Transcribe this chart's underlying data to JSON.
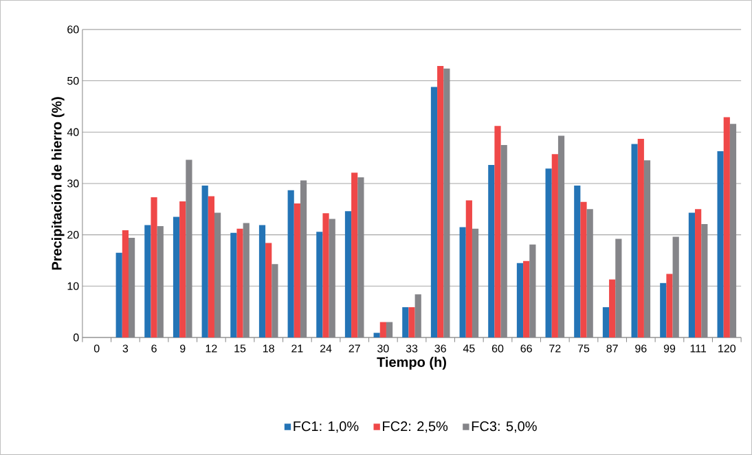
{
  "chart_data": {
    "type": "bar",
    "xlabel": "Tiempo (h)",
    "ylabel": "Precipitación de hierro (%)",
    "categories": [
      "0",
      "3",
      "6",
      "9",
      "12",
      "15",
      "18",
      "21",
      "24",
      "27",
      "30",
      "33",
      "36",
      "45",
      "60",
      "66",
      "72",
      "75",
      "87",
      "96",
      "99",
      "111",
      "120"
    ],
    "series": [
      {
        "name": "FC1: 1,0%",
        "color": "#2474b6",
        "values": [
          null,
          16.5,
          21.9,
          23.5,
          29.6,
          20.4,
          21.9,
          28.7,
          20.6,
          24.6,
          0.9,
          5.9,
          48.8,
          21.5,
          33.6,
          14.5,
          32.9,
          29.6,
          5.9,
          37.7,
          10.6,
          24.3,
          36.3
        ]
      },
      {
        "name": "FC2: 2,5%",
        "color": "#ef4848",
        "values": [
          null,
          20.9,
          27.3,
          26.5,
          27.5,
          21.2,
          18.4,
          26.1,
          24.2,
          32.1,
          3.0,
          5.9,
          52.9,
          26.7,
          41.2,
          14.9,
          35.7,
          26.4,
          11.3,
          38.7,
          12.4,
          25.0,
          42.9
        ]
      },
      {
        "name": "FC3: 5,0%",
        "color": "#858589",
        "values": [
          null,
          19.4,
          21.7,
          34.6,
          24.3,
          22.3,
          14.3,
          30.6,
          23.1,
          31.2,
          3.0,
          8.4,
          52.4,
          21.2,
          37.5,
          18.1,
          39.3,
          25.0,
          19.2,
          34.5,
          19.6,
          22.1,
          41.6
        ]
      }
    ],
    "ylim": [
      0,
      60
    ],
    "yticks": [
      0,
      10,
      20,
      30,
      40,
      50,
      60
    ],
    "grid": "y",
    "legend": "bottom"
  }
}
